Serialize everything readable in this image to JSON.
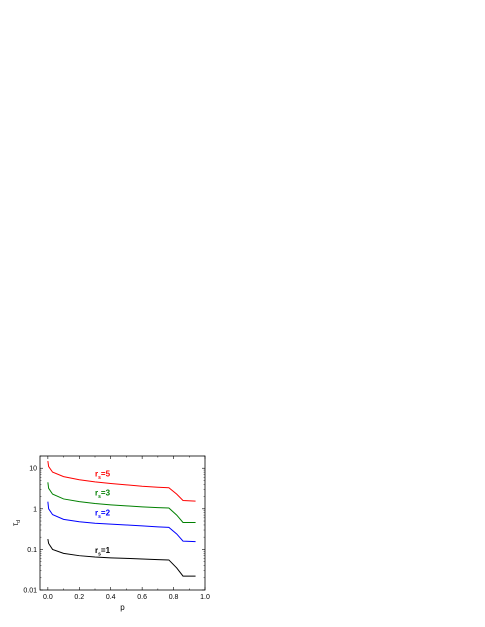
{
  "chart_data": {
    "type": "line",
    "title": "",
    "xlabel": "p",
    "ylabel": "τ_d",
    "xlim": [
      -0.05,
      1.0
    ],
    "ylim": [
      0.01,
      20
    ],
    "yscale": "log",
    "x_ticks": [
      "0.0",
      "0.2",
      "0.4",
      "0.6",
      "0.8",
      "1.0"
    ],
    "y_ticks": [
      "0.01",
      "0.1",
      "1",
      "10"
    ],
    "grid": false,
    "legend": "none",
    "series": [
      {
        "name": "r_s=1",
        "label_main": "r",
        "label_sub": "s",
        "label_rest": "=1",
        "color": "#000000",
        "points": [
          [
            0.0,
            0.18
          ],
          [
            0.005,
            0.14
          ],
          [
            0.03,
            0.1
          ],
          [
            0.1,
            0.08
          ],
          [
            0.2,
            0.07
          ],
          [
            0.3,
            0.065
          ],
          [
            0.4,
            0.062
          ],
          [
            0.5,
            0.06
          ],
          [
            0.6,
            0.058
          ],
          [
            0.7,
            0.056
          ],
          [
            0.77,
            0.055
          ],
          [
            0.82,
            0.035
          ],
          [
            0.86,
            0.022
          ],
          [
            0.94,
            0.022
          ]
        ]
      },
      {
        "name": "r_s=2",
        "label_main": "r",
        "label_sub": "s",
        "label_rest": "=2",
        "color": "#0000ff",
        "points": [
          [
            0.0,
            1.5
          ],
          [
            0.005,
            1.0
          ],
          [
            0.03,
            0.72
          ],
          [
            0.1,
            0.55
          ],
          [
            0.2,
            0.48
          ],
          [
            0.3,
            0.44
          ],
          [
            0.4,
            0.42
          ],
          [
            0.5,
            0.4
          ],
          [
            0.6,
            0.38
          ],
          [
            0.7,
            0.36
          ],
          [
            0.77,
            0.35
          ],
          [
            0.82,
            0.24
          ],
          [
            0.86,
            0.16
          ],
          [
            0.94,
            0.155
          ]
        ]
      },
      {
        "name": "r_s=3",
        "label_main": "r",
        "label_sub": "s",
        "label_rest": "=3",
        "color": "#008000",
        "points": [
          [
            0.0,
            4.5
          ],
          [
            0.005,
            3.2
          ],
          [
            0.03,
            2.3
          ],
          [
            0.1,
            1.75
          ],
          [
            0.2,
            1.5
          ],
          [
            0.3,
            1.35
          ],
          [
            0.4,
            1.25
          ],
          [
            0.5,
            1.18
          ],
          [
            0.6,
            1.12
          ],
          [
            0.7,
            1.07
          ],
          [
            0.77,
            1.05
          ],
          [
            0.82,
            0.7
          ],
          [
            0.86,
            0.46
          ],
          [
            0.94,
            0.46
          ]
        ]
      },
      {
        "name": "r_s=5",
        "label_main": "r",
        "label_sub": "s",
        "label_rest": "=5",
        "color": "#ff0000",
        "points": [
          [
            0.0,
            15
          ],
          [
            0.005,
            11
          ],
          [
            0.03,
            8
          ],
          [
            0.1,
            6.2
          ],
          [
            0.2,
            5.2
          ],
          [
            0.3,
            4.6
          ],
          [
            0.4,
            4.2
          ],
          [
            0.5,
            3.9
          ],
          [
            0.6,
            3.6
          ],
          [
            0.7,
            3.4
          ],
          [
            0.77,
            3.3
          ],
          [
            0.82,
            2.3
          ],
          [
            0.86,
            1.6
          ],
          [
            0.94,
            1.55
          ]
        ]
      }
    ],
    "annotations": [
      {
        "series": "r_s=5",
        "x": 0.3,
        "y": 6.3
      },
      {
        "series": "r_s=3",
        "x": 0.3,
        "y": 2.1
      },
      {
        "series": "r_s=2",
        "x": 0.3,
        "y": 0.68
      },
      {
        "series": "r_s=1",
        "x": 0.3,
        "y": 0.082
      }
    ]
  }
}
